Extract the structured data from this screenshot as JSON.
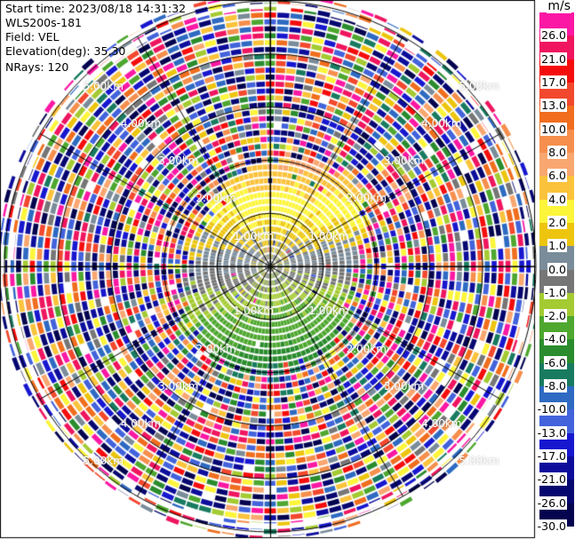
{
  "header": {
    "lines": [
      "Start time: 2023/08/18 14:31:32",
      "WLS200s-181",
      "Field: VEL",
      "Elevation(deg): 35.30",
      "NRays: 120"
    ]
  },
  "chart_data": {
    "type": "ppi_polar_radial_velocity",
    "instrument": "WLS200s-181",
    "field": "VEL",
    "units": "m/s",
    "start_time": "2023/08/18 14:31:32",
    "elevation_deg": 35.3,
    "n_rays": 120,
    "ray_width_deg": 3,
    "gate_length_km": 0.13,
    "max_range_km": 5.2,
    "range_rings_km": [
      1,
      2,
      3,
      4,
      5
    ],
    "ring_labels": [
      "1.00km",
      "2.00km",
      "3.00km",
      "4.00km",
      "5.00km"
    ],
    "ring_label_diagonals_deg": [
      315,
      45,
      225,
      135
    ],
    "spoke_interval_deg": 30,
    "summary": "Velocity dipole inside ~2 km: positive 1-10 m/s (yellow/gold/orange) in the northern half, negative -1 to -8 m/s (yellow-green/green/dark green) in the southern half, near-zero gray along the east-west axis and around the origin; uncorrelated multicolour noise from ~1.5-2.3 km out to the 5.2 km data edge.",
    "colorbar": {
      "title": "m/s",
      "levels": [
        30,
        26,
        21,
        17,
        13,
        10,
        8,
        6,
        4,
        2,
        1,
        0,
        -1,
        -2,
        -4,
        -6,
        -8,
        -10,
        -13,
        -17,
        -21,
        -26,
        -30
      ],
      "colors": [
        "#FB18A4",
        "#EF155F",
        "#F50D0D",
        "#F2482E",
        "#F06E1E",
        "#F68F4D",
        "#F9A770",
        "#FBC33C",
        "#FDF53A",
        "#EDC50E",
        "#7A8C9A",
        "#767676",
        "#A4CB32",
        "#4EA72F",
        "#2A8C2D",
        "#187B60",
        "#2E6AC2",
        "#4263DB",
        "#1717CF",
        "#0D0D9C",
        "#070770",
        "#04044F"
      ],
      "tick_labels": [
        "26.0",
        "21.0",
        "17.0",
        "13.0",
        "10.0",
        "8.0",
        "6.0",
        "4.0",
        "2.0",
        "1.0",
        "0.0",
        "-1.0",
        "-2.0",
        "-4.0",
        "-6.0",
        "-8.0",
        "-10.0",
        "-13.0",
        "-17.0",
        "-21.0",
        "-26.0",
        "-30.0"
      ]
    },
    "pattern": {
      "seed": 20230818,
      "dipole_direction_deg": 357,
      "amp_base_ms": 1.25,
      "amp_slope_ms": 5.3,
      "amp_power": 2.1,
      "cell_noise_sd_ms": 0.95,
      "west_weaken": 0.22,
      "center_damp_radius_km": 0.55,
      "center_speckle_radius_km": 0.45,
      "noise_boundary_km_octants": [
        2.05,
        2.3,
        1.6,
        1.85,
        2.1,
        1.95,
        1.55,
        1.6
      ],
      "noise_weights": [
        1.25,
        1.2,
        1.0,
        0.95,
        0.9,
        0.8,
        0.7,
        0.75,
        0.95,
        0.7,
        0.55,
        0.6,
        0.7,
        0.85,
        0.75,
        0.7,
        1.1,
        1.15,
        1.35,
        1.4,
        1.5,
        1.4,
        0.4
      ]
    }
  }
}
